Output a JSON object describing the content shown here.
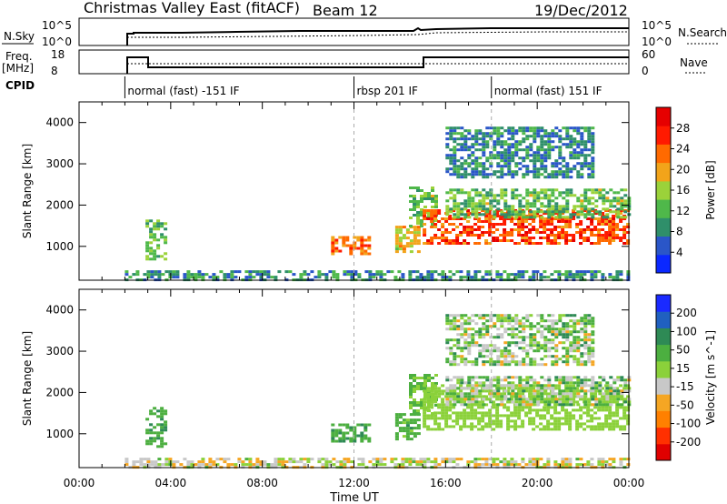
{
  "header": {
    "radar": "Christmas Valley East (fitACF)",
    "beam": "Beam 12",
    "date": "19/Dec/2012"
  },
  "noise_panel": {
    "left_label": "N.Sky",
    "left_ticks": [
      "10^5",
      "10^0"
    ],
    "right_ticks": [
      "10^5",
      "10^0"
    ],
    "right_label": "N.Search"
  },
  "freq_panel": {
    "left_label_1": "Freq.",
    "left_label_2": "[MHz]",
    "left_ticks": [
      "18",
      "8"
    ],
    "right_ticks": [
      "60",
      "0"
    ],
    "right_label": "Nave"
  },
  "cpid": {
    "label": "CPID",
    "segments": [
      {
        "start_hour": 2.0,
        "label": "normal (fast) -151 IF"
      },
      {
        "start_hour": 12.0,
        "label": "rbsp 201 IF"
      },
      {
        "start_hour": 18.0,
        "label": "normal (fast) 151 IF"
      }
    ]
  },
  "colors": {
    "power": [
      "#0a28ff",
      "#2a56c8",
      "#2f8f6a",
      "#4fb84a",
      "#9bd23a",
      "#f2a41a",
      "#ff6a00",
      "#ff1a00",
      "#e60000"
    ],
    "velocity": [
      "#1a2aff",
      "#2060c0",
      "#2e8a55",
      "#4caf40",
      "#8bd13a",
      "#c8c8c8",
      "#f5a623",
      "#ff8000",
      "#ff3000",
      "#e00000"
    ]
  },
  "chart_data": [
    {
      "type": "heatmap",
      "name": "power",
      "xlabel": "Time UT",
      "ylabel": "Slant Range [km]",
      "x_range_hours": [
        0,
        24
      ],
      "x_ticks": [
        "00:00",
        "04:00",
        "08:00",
        "12:00",
        "16:00",
        "20:00",
        "00:00"
      ],
      "y_range_km": [
        180,
        4500
      ],
      "y_ticks": [
        1000,
        2000,
        3000,
        4000
      ],
      "colorbar_label": "Power [dB]",
      "colorbar_ticks": [
        4,
        8,
        12,
        16,
        20,
        24,
        28
      ],
      "colorbar_range": [
        0,
        32
      ],
      "regions": [
        {
          "t": [
            2.0,
            24.0
          ],
          "r": [
            200,
            420
          ],
          "v": [
            4,
            14
          ]
        },
        {
          "t": [
            2.9,
            3.7
          ],
          "r": [
            700,
            1650
          ],
          "v": [
            8,
            18
          ]
        },
        {
          "t": [
            11.0,
            12.6
          ],
          "r": [
            820,
            1250
          ],
          "v": [
            18,
            26
          ]
        },
        {
          "t": [
            13.8,
            14.9
          ],
          "r": [
            850,
            1500
          ],
          "v": [
            14,
            22
          ]
        },
        {
          "t": [
            14.4,
            15.6
          ],
          "r": [
            1500,
            2450
          ],
          "v": [
            10,
            18
          ]
        },
        {
          "t": [
            15.0,
            24.0
          ],
          "r": [
            1100,
            1900
          ],
          "v": [
            20,
            30
          ]
        },
        {
          "t": [
            16.0,
            24.0
          ],
          "r": [
            1700,
            2400
          ],
          "v": [
            8,
            18
          ]
        },
        {
          "t": [
            16.0,
            22.5
          ],
          "r": [
            2700,
            3900
          ],
          "v": [
            4,
            12
          ]
        }
      ]
    },
    {
      "type": "heatmap",
      "name": "velocity",
      "xlabel": "Time UT",
      "ylabel": "Slant Range [km]",
      "x_range_hours": [
        0,
        24
      ],
      "x_ticks": [
        "00:00",
        "04:00",
        "08:00",
        "12:00",
        "16:00",
        "20:00",
        "00:00"
      ],
      "y_range_km": [
        180,
        4500
      ],
      "y_ticks": [
        1000,
        2000,
        3000,
        4000
      ],
      "colorbar_label": "Velocity [m s^-1]",
      "colorbar_ticks": [
        "200",
        "100",
        "50",
        "15",
        "-15",
        "-50",
        "-100",
        "-200"
      ],
      "regions": [
        {
          "t": [
            2.0,
            24.0
          ],
          "r": [
            200,
            420
          ],
          "v": [
            -80,
            20
          ]
        },
        {
          "t": [
            2.9,
            3.7
          ],
          "r": [
            700,
            1650
          ],
          "v": [
            20,
            60
          ]
        },
        {
          "t": [
            11.0,
            12.6
          ],
          "r": [
            820,
            1250
          ],
          "v": [
            20,
            60
          ]
        },
        {
          "t": [
            13.8,
            14.9
          ],
          "r": [
            850,
            1500
          ],
          "v": [
            10,
            60
          ]
        },
        {
          "t": [
            14.4,
            15.6
          ],
          "r": [
            1500,
            2450
          ],
          "v": [
            -10,
            40
          ]
        },
        {
          "t": [
            15.0,
            24.0
          ],
          "r": [
            1100,
            2200
          ],
          "v": [
            -10,
            10
          ]
        },
        {
          "t": [
            16.0,
            24.0
          ],
          "r": [
            1700,
            2400
          ],
          "v": [
            -60,
            60
          ]
        },
        {
          "t": [
            16.0,
            22.5
          ],
          "r": [
            2700,
            3900
          ],
          "v": [
            -60,
            60
          ]
        }
      ]
    }
  ]
}
